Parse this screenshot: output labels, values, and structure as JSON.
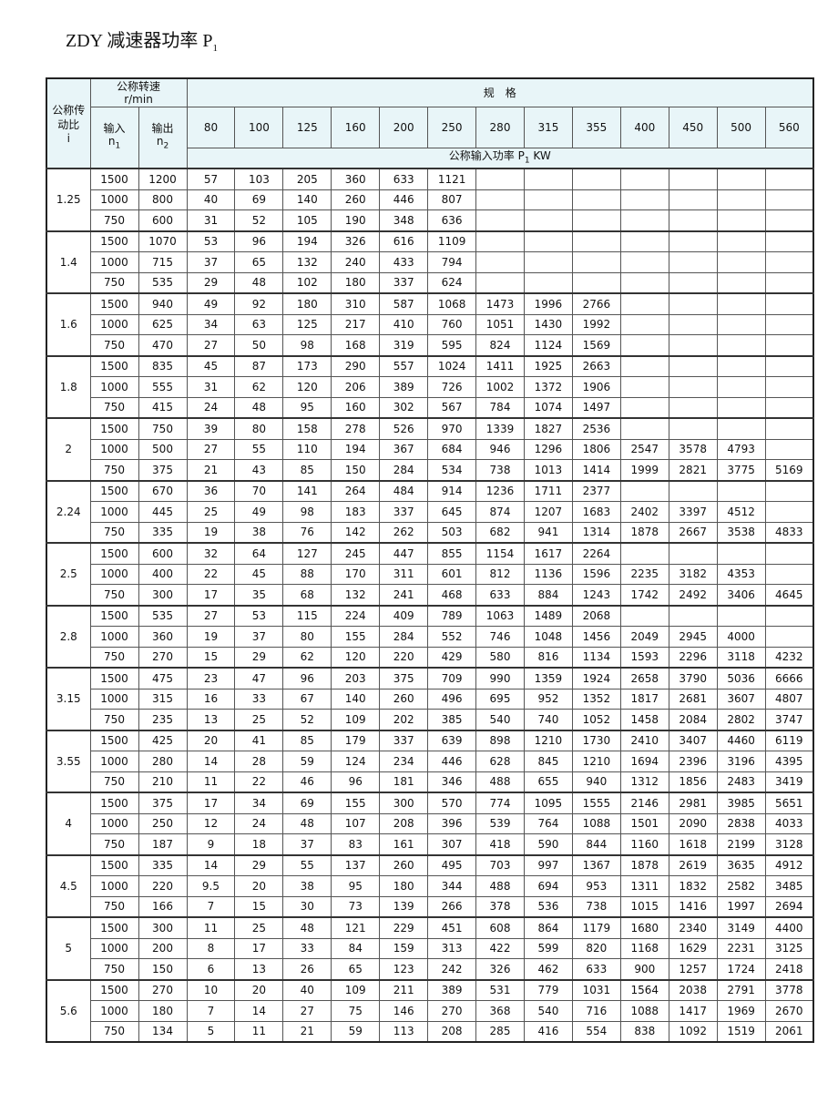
{
  "title": {
    "main": "ZDY 减速器功率 P",
    "sub": "1"
  },
  "header": {
    "ratio_label": "公称传动比",
    "ratio_symbol": "i",
    "speed_label": "公称转速",
    "speed_unit": "r/min",
    "input_label": "输入",
    "input_symbol": "n",
    "input_sub": "1",
    "output_label": "输出",
    "output_symbol": "n",
    "output_sub": "2",
    "spec_label": "规　格",
    "power_label": "公称输入功率 P",
    "power_sub": "1",
    "power_unit": " KW",
    "sizes": [
      "80",
      "100",
      "125",
      "160",
      "200",
      "250",
      "280",
      "315",
      "355",
      "400",
      "450",
      "500",
      "560"
    ]
  },
  "groups": [
    {
      "ratio": "1.25",
      "rows": [
        {
          "n1": "1500",
          "n2": "1200",
          "v": [
            "57",
            "103",
            "205",
            "360",
            "633",
            "1121",
            "",
            "",
            "",
            "",
            "",
            "",
            ""
          ]
        },
        {
          "n1": "1000",
          "n2": "800",
          "v": [
            "40",
            "69",
            "140",
            "260",
            "446",
            "807",
            "",
            "",
            "",
            "",
            "",
            "",
            ""
          ]
        },
        {
          "n1": "750",
          "n2": "600",
          "v": [
            "31",
            "52",
            "105",
            "190",
            "348",
            "636",
            "",
            "",
            "",
            "",
            "",
            "",
            ""
          ]
        }
      ]
    },
    {
      "ratio": "1.4",
      "rows": [
        {
          "n1": "1500",
          "n2": "1070",
          "v": [
            "53",
            "96",
            "194",
            "326",
            "616",
            "1109",
            "",
            "",
            "",
            "",
            "",
            "",
            ""
          ]
        },
        {
          "n1": "1000",
          "n2": "715",
          "v": [
            "37",
            "65",
            "132",
            "240",
            "433",
            "794",
            "",
            "",
            "",
            "",
            "",
            "",
            ""
          ]
        },
        {
          "n1": "750",
          "n2": "535",
          "v": [
            "29",
            "48",
            "102",
            "180",
            "337",
            "624",
            "",
            "",
            "",
            "",
            "",
            "",
            ""
          ]
        }
      ]
    },
    {
      "ratio": "1.6",
      "rows": [
        {
          "n1": "1500",
          "n2": "940",
          "v": [
            "49",
            "92",
            "180",
            "310",
            "587",
            "1068",
            "1473",
            "1996",
            "2766",
            "",
            "",
            "",
            ""
          ]
        },
        {
          "n1": "1000",
          "n2": "625",
          "v": [
            "34",
            "63",
            "125",
            "217",
            "410",
            "760",
            "1051",
            "1430",
            "1992",
            "",
            "",
            "",
            ""
          ]
        },
        {
          "n1": "750",
          "n2": "470",
          "v": [
            "27",
            "50",
            "98",
            "168",
            "319",
            "595",
            "824",
            "1124",
            "1569",
            "",
            "",
            "",
            ""
          ]
        }
      ]
    },
    {
      "ratio": "1.8",
      "rows": [
        {
          "n1": "1500",
          "n2": "835",
          "v": [
            "45",
            "87",
            "173",
            "290",
            "557",
            "1024",
            "1411",
            "1925",
            "2663",
            "",
            "",
            "",
            ""
          ]
        },
        {
          "n1": "1000",
          "n2": "555",
          "v": [
            "31",
            "62",
            "120",
            "206",
            "389",
            "726",
            "1002",
            "1372",
            "1906",
            "",
            "",
            "",
            ""
          ]
        },
        {
          "n1": "750",
          "n2": "415",
          "v": [
            "24",
            "48",
            "95",
            "160",
            "302",
            "567",
            "784",
            "1074",
            "1497",
            "",
            "",
            "",
            ""
          ]
        }
      ]
    },
    {
      "ratio": "2",
      "rows": [
        {
          "n1": "1500",
          "n2": "750",
          "v": [
            "39",
            "80",
            "158",
            "278",
            "526",
            "970",
            "1339",
            "1827",
            "2536",
            "",
            "",
            "",
            ""
          ]
        },
        {
          "n1": "1000",
          "n2": "500",
          "v": [
            "27",
            "55",
            "110",
            "194",
            "367",
            "684",
            "946",
            "1296",
            "1806",
            "2547",
            "3578",
            "4793",
            ""
          ]
        },
        {
          "n1": "750",
          "n2": "375",
          "v": [
            "21",
            "43",
            "85",
            "150",
            "284",
            "534",
            "738",
            "1013",
            "1414",
            "1999",
            "2821",
            "3775",
            "5169"
          ]
        }
      ]
    },
    {
      "ratio": "2.24",
      "rows": [
        {
          "n1": "1500",
          "n2": "670",
          "v": [
            "36",
            "70",
            "141",
            "264",
            "484",
            "914",
            "1236",
            "1711",
            "2377",
            "",
            "",
            "",
            ""
          ]
        },
        {
          "n1": "1000",
          "n2": "445",
          "v": [
            "25",
            "49",
            "98",
            "183",
            "337",
            "645",
            "874",
            "1207",
            "1683",
            "2402",
            "3397",
            "4512",
            ""
          ]
        },
        {
          "n1": "750",
          "n2": "335",
          "v": [
            "19",
            "38",
            "76",
            "142",
            "262",
            "503",
            "682",
            "941",
            "1314",
            "1878",
            "2667",
            "3538",
            "4833"
          ]
        }
      ]
    },
    {
      "ratio": "2.5",
      "rows": [
        {
          "n1": "1500",
          "n2": "600",
          "v": [
            "32",
            "64",
            "127",
            "245",
            "447",
            "855",
            "1154",
            "1617",
            "2264",
            "",
            "",
            "",
            ""
          ]
        },
        {
          "n1": "1000",
          "n2": "400",
          "v": [
            "22",
            "45",
            "88",
            "170",
            "311",
            "601",
            "812",
            "1136",
            "1596",
            "2235",
            "3182",
            "4353",
            ""
          ]
        },
        {
          "n1": "750",
          "n2": "300",
          "v": [
            "17",
            "35",
            "68",
            "132",
            "241",
            "468",
            "633",
            "884",
            "1243",
            "1742",
            "2492",
            "3406",
            "4645"
          ]
        }
      ]
    },
    {
      "ratio": "2.8",
      "rows": [
        {
          "n1": "1500",
          "n2": "535",
          "v": [
            "27",
            "53",
            "115",
            "224",
            "409",
            "789",
            "1063",
            "1489",
            "2068",
            "",
            "",
            "",
            ""
          ]
        },
        {
          "n1": "1000",
          "n2": "360",
          "v": [
            "19",
            "37",
            "80",
            "155",
            "284",
            "552",
            "746",
            "1048",
            "1456",
            "2049",
            "2945",
            "4000",
            ""
          ]
        },
        {
          "n1": "750",
          "n2": "270",
          "v": [
            "15",
            "29",
            "62",
            "120",
            "220",
            "429",
            "580",
            "816",
            "1134",
            "1593",
            "2296",
            "3118",
            "4232"
          ]
        }
      ]
    },
    {
      "ratio": "3.15",
      "rows": [
        {
          "n1": "1500",
          "n2": "475",
          "v": [
            "23",
            "47",
            "96",
            "203",
            "375",
            "709",
            "990",
            "1359",
            "1924",
            "2658",
            "3790",
            "5036",
            "6666"
          ]
        },
        {
          "n1": "1000",
          "n2": "315",
          "v": [
            "16",
            "33",
            "67",
            "140",
            "260",
            "496",
            "695",
            "952",
            "1352",
            "1817",
            "2681",
            "3607",
            "4807"
          ]
        },
        {
          "n1": "750",
          "n2": "235",
          "v": [
            "13",
            "25",
            "52",
            "109",
            "202",
            "385",
            "540",
            "740",
            "1052",
            "1458",
            "2084",
            "2802",
            "3747"
          ]
        }
      ]
    },
    {
      "ratio": "3.55",
      "rows": [
        {
          "n1": "1500",
          "n2": "425",
          "v": [
            "20",
            "41",
            "85",
            "179",
            "337",
            "639",
            "898",
            "1210",
            "1730",
            "2410",
            "3407",
            "4460",
            "6119"
          ]
        },
        {
          "n1": "1000",
          "n2": "280",
          "v": [
            "14",
            "28",
            "59",
            "124",
            "234",
            "446",
            "628",
            "845",
            "1210",
            "1694",
            "2396",
            "3196",
            "4395"
          ]
        },
        {
          "n1": "750",
          "n2": "210",
          "v": [
            "11",
            "22",
            "46",
            "96",
            "181",
            "346",
            "488",
            "655",
            "940",
            "1312",
            "1856",
            "2483",
            "3419"
          ]
        }
      ]
    },
    {
      "ratio": "4",
      "rows": [
        {
          "n1": "1500",
          "n2": "375",
          "v": [
            "17",
            "34",
            "69",
            "155",
            "300",
            "570",
            "774",
            "1095",
            "1555",
            "2146",
            "2981",
            "3985",
            "5651"
          ]
        },
        {
          "n1": "1000",
          "n2": "250",
          "v": [
            "12",
            "24",
            "48",
            "107",
            "208",
            "396",
            "539",
            "764",
            "1088",
            "1501",
            "2090",
            "2838",
            "4033"
          ]
        },
        {
          "n1": "750",
          "n2": "187",
          "v": [
            "9",
            "18",
            "37",
            "83",
            "161",
            "307",
            "418",
            "590",
            "844",
            "1160",
            "1618",
            "2199",
            "3128"
          ]
        }
      ]
    },
    {
      "ratio": "4.5",
      "rows": [
        {
          "n1": "1500",
          "n2": "335",
          "v": [
            "14",
            "29",
            "55",
            "137",
            "260",
            "495",
            "703",
            "997",
            "1367",
            "1878",
            "2619",
            "3635",
            "4912"
          ]
        },
        {
          "n1": "1000",
          "n2": "220",
          "v": [
            "9.5",
            "20",
            "38",
            "95",
            "180",
            "344",
            "488",
            "694",
            "953",
            "1311",
            "1832",
            "2582",
            "3485"
          ]
        },
        {
          "n1": "750",
          "n2": "166",
          "v": [
            "7",
            "15",
            "30",
            "73",
            "139",
            "266",
            "378",
            "536",
            "738",
            "1015",
            "1416",
            "1997",
            "2694"
          ]
        }
      ]
    },
    {
      "ratio": "5",
      "rows": [
        {
          "n1": "1500",
          "n2": "300",
          "v": [
            "11",
            "25",
            "48",
            "121",
            "229",
            "451",
            "608",
            "864",
            "1179",
            "1680",
            "2340",
            "3149",
            "4400"
          ]
        },
        {
          "n1": "1000",
          "n2": "200",
          "v": [
            "8",
            "17",
            "33",
            "84",
            "159",
            "313",
            "422",
            "599",
            "820",
            "1168",
            "1629",
            "2231",
            "3125"
          ]
        },
        {
          "n1": "750",
          "n2": "150",
          "v": [
            "6",
            "13",
            "26",
            "65",
            "123",
            "242",
            "326",
            "462",
            "633",
            "900",
            "1257",
            "1724",
            "2418"
          ]
        }
      ]
    },
    {
      "ratio": "5.6",
      "rows": [
        {
          "n1": "1500",
          "n2": "270",
          "v": [
            "10",
            "20",
            "40",
            "109",
            "211",
            "389",
            "531",
            "779",
            "1031",
            "1564",
            "2038",
            "2791",
            "3778"
          ]
        },
        {
          "n1": "1000",
          "n2": "180",
          "v": [
            "7",
            "14",
            "27",
            "75",
            "146",
            "270",
            "368",
            "540",
            "716",
            "1088",
            "1417",
            "1969",
            "2670"
          ]
        },
        {
          "n1": "750",
          "n2": "134",
          "v": [
            "5",
            "11",
            "21",
            "59",
            "113",
            "208",
            "285",
            "416",
            "554",
            "838",
            "1092",
            "1519",
            "2061"
          ]
        }
      ]
    }
  ]
}
